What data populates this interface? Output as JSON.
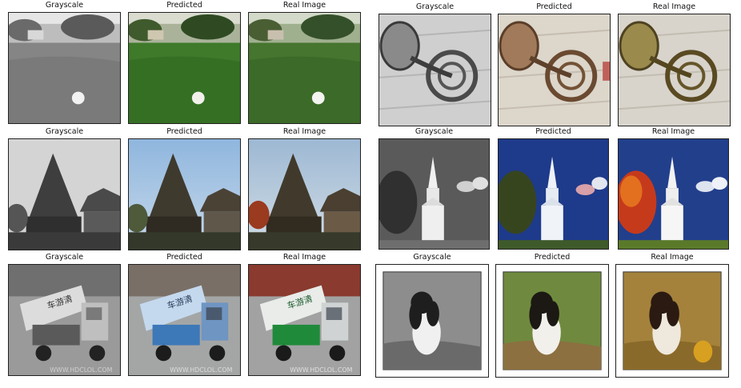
{
  "rows": [
    {
      "id": "golf",
      "panels": [
        {
          "label": "Grayscale",
          "variant": "gray"
        },
        {
          "label": "Predicted",
          "variant": "pred"
        },
        {
          "label": "Real Image",
          "variant": "real"
        }
      ]
    },
    {
      "id": "horn",
      "panels": [
        {
          "label": "Grayscale",
          "variant": "gray"
        },
        {
          "label": "Predicted",
          "variant": "pred"
        },
        {
          "label": "Real Image",
          "variant": "real"
        }
      ]
    },
    {
      "id": "tower",
      "panels": [
        {
          "label": "Grayscale",
          "variant": "gray"
        },
        {
          "label": "Predicted",
          "variant": "pred"
        },
        {
          "label": "Real Image",
          "variant": "real"
        }
      ]
    },
    {
      "id": "church",
      "panels": [
        {
          "label": "Grayscale",
          "variant": "gray"
        },
        {
          "label": "Predicted",
          "variant": "pred"
        },
        {
          "label": "Real Image",
          "variant": "real"
        }
      ]
    },
    {
      "id": "truck",
      "panels": [
        {
          "label": "Grayscale",
          "variant": "gray"
        },
        {
          "label": "Predicted",
          "variant": "pred"
        },
        {
          "label": "Real Image",
          "variant": "real"
        }
      ],
      "overlay_text": "车游清",
      "watermark": "WWW.HDCLOL.COM"
    },
    {
      "id": "dog",
      "panels": [
        {
          "label": "Grayscale",
          "variant": "gray"
        },
        {
          "label": "Predicted",
          "variant": "pred"
        },
        {
          "label": "Real Image",
          "variant": "real"
        }
      ]
    }
  ]
}
